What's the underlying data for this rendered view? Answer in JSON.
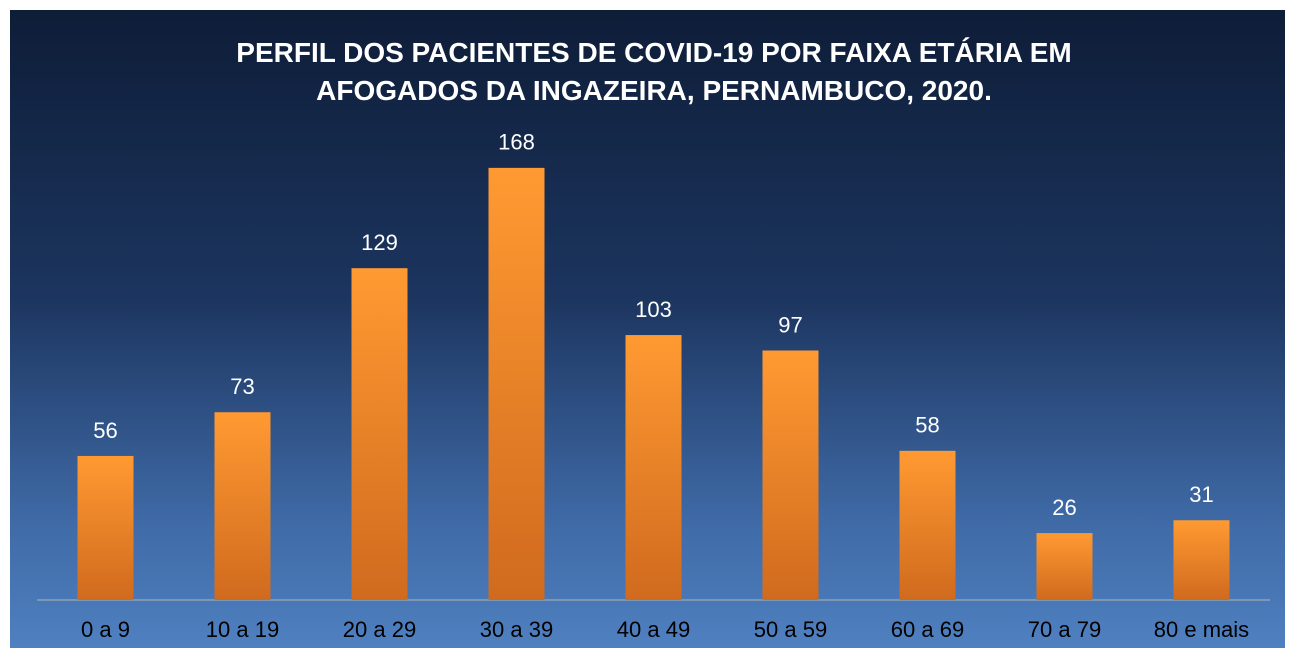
{
  "chart_data": {
    "type": "bar",
    "title": "PERFIL DOS PACIENTES DE COVID-19 POR FAIXA ETÁRIA EM AFOGADOS DA INGAZEIRA, PERNAMBUCO, 2020.",
    "categories": [
      "0 a 9",
      "10 a 19",
      "20 a 29",
      "30 a 39",
      "40 a 49",
      "50 a 59",
      "60 a 69",
      "70 a 79",
      "80 e mais"
    ],
    "values": [
      56,
      73,
      129,
      168,
      103,
      97,
      58,
      26,
      31
    ],
    "color": "#f28a25",
    "ylim": [
      0,
      180
    ]
  }
}
